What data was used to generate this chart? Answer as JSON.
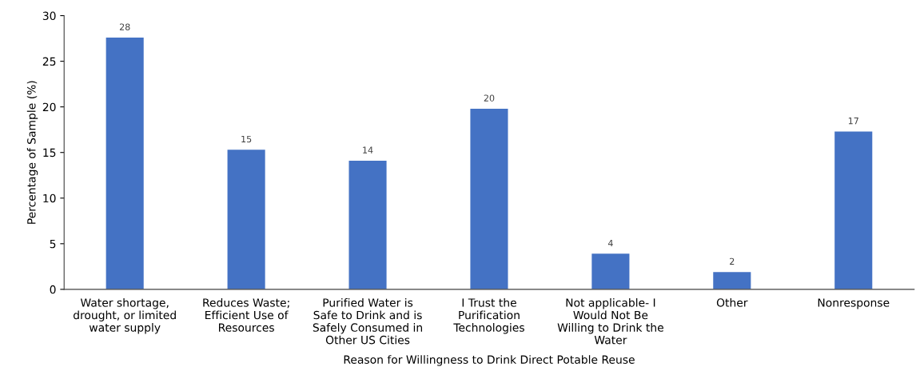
{
  "chart_data": {
    "type": "bar",
    "xlabel": "Reason for Willingness to Drink Direct Potable Reuse",
    "ylabel": "Percentage of Sample (%)",
    "categories": [
      "Water shortage,\ndrought, or limited\nwater supply",
      "Reduces Waste;\nEfficient Use of\nResources",
      "Purified Water is\nSafe to Drink and is\nSafely Consumed in\nOther US Cities",
      "I Trust the\nPurification\nTechnologies",
      "Not applicable- I\nWould Not Be\nWilling to Drink the\nWater",
      "Other",
      "Nonresponse"
    ],
    "values": [
      27.6,
      15.3,
      14.1,
      19.8,
      3.9,
      1.9,
      17.3
    ],
    "value_labels": [
      "28",
      "15",
      "14",
      "20",
      "4",
      "2",
      "17"
    ],
    "color": "#4472c4",
    "ylim": [
      0,
      30
    ],
    "yticks": [
      0,
      5,
      10,
      15,
      20,
      25,
      30
    ],
    "grid": false,
    "legend": false
  }
}
